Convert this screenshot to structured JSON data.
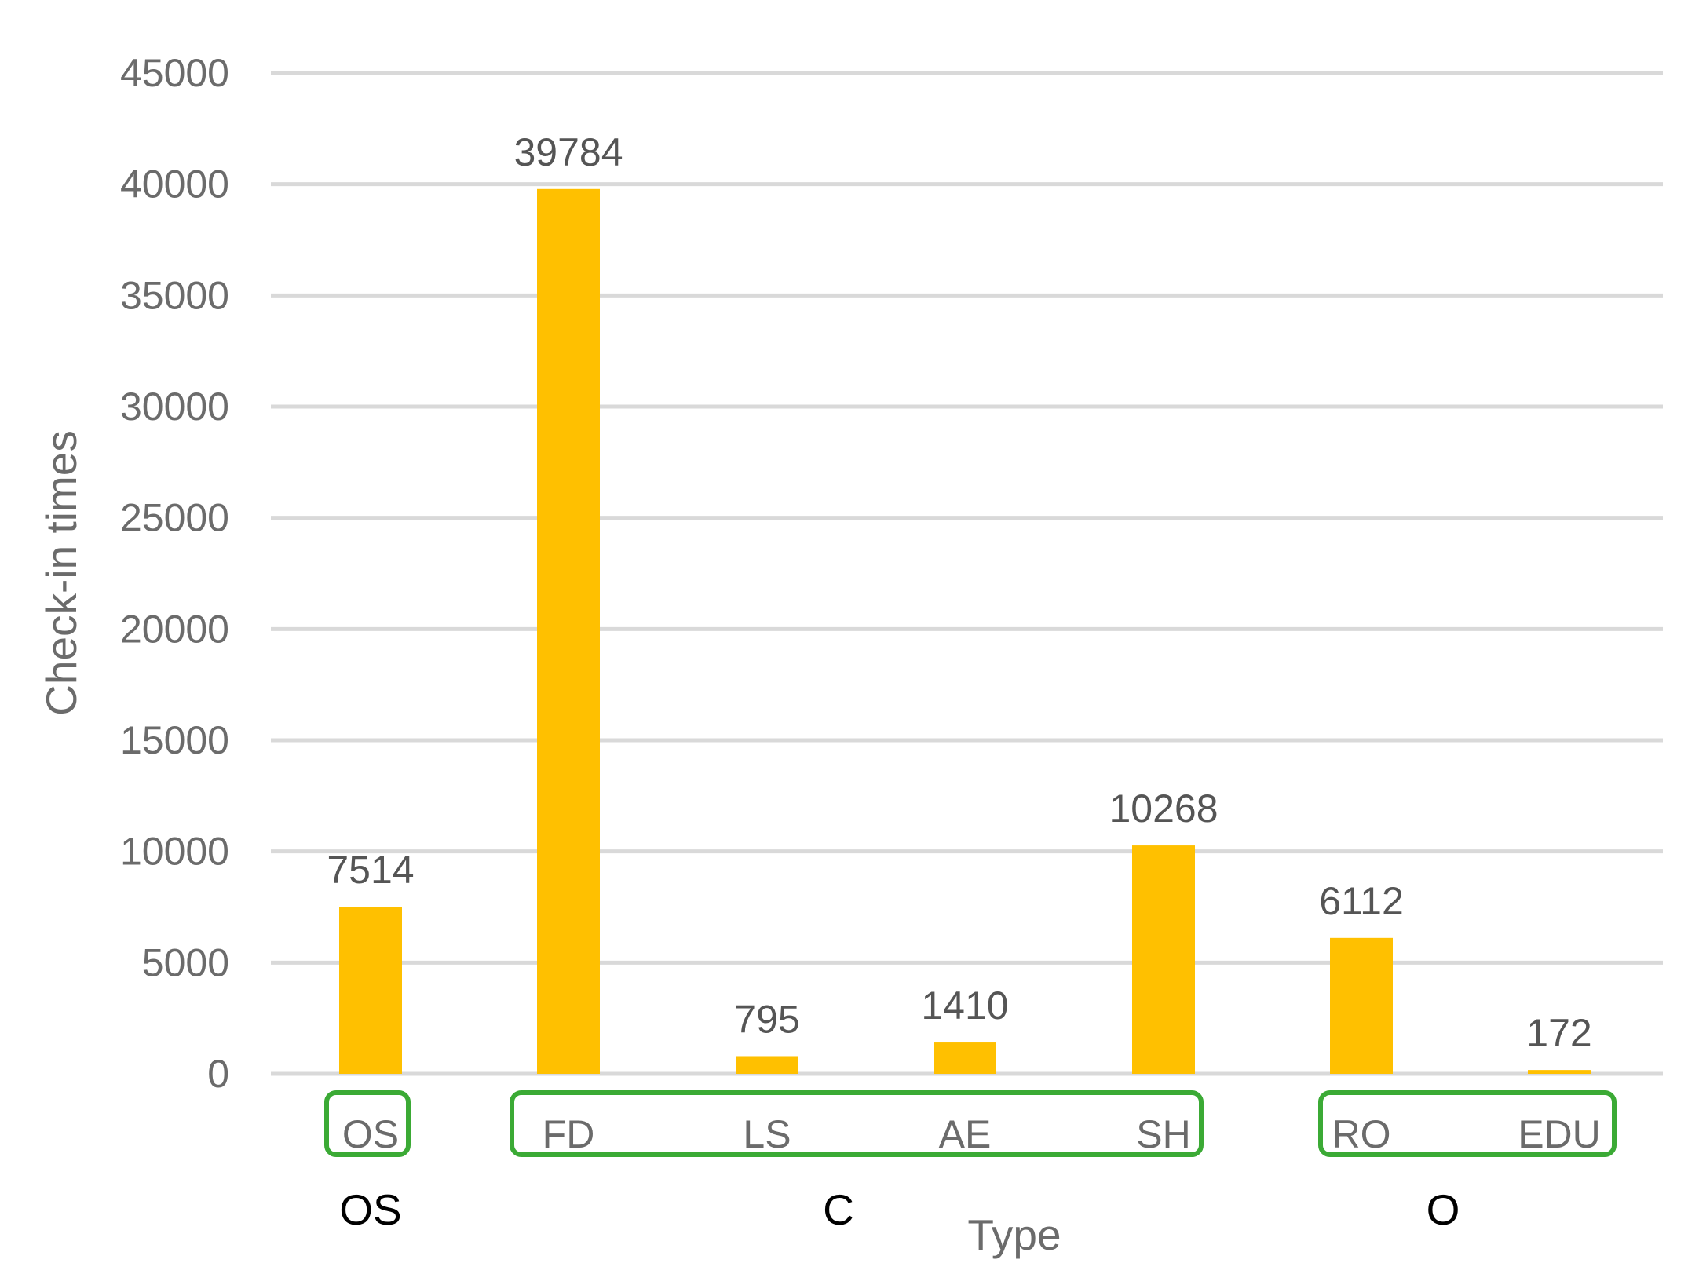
{
  "chart_data": {
    "type": "bar",
    "categories": [
      "OS",
      "FD",
      "LS",
      "AE",
      "SH",
      "RO",
      "EDU"
    ],
    "values": [
      7514,
      39784,
      795,
      1410,
      10268,
      6112,
      172
    ],
    "data_labels": [
      "7514",
      "39784",
      "795",
      "1410",
      "10268",
      "6112",
      "172"
    ],
    "ylim": [
      0,
      45000
    ],
    "yticks": [
      0,
      5000,
      10000,
      15000,
      20000,
      25000,
      30000,
      35000,
      40000,
      45000
    ],
    "ytick_labels": [
      "0",
      "5000",
      "10000",
      "15000",
      "20000",
      "25000",
      "30000",
      "35000",
      "40000",
      "45000"
    ],
    "xlabel": "Type",
    "ylabel": "Check-in times",
    "grid": true,
    "legend": "none",
    "groups": [
      {
        "label": "OS",
        "members": [
          "OS"
        ]
      },
      {
        "label": "C",
        "members": [
          "FD",
          "LS",
          "AE",
          "SH"
        ]
      },
      {
        "label": "O",
        "members": [
          "RO",
          "EDU"
        ]
      }
    ],
    "colors": {
      "bar": "#FFC000",
      "group_box": "#3BAA35",
      "grid": "#d9d9d9",
      "tick_text": "#6b6b6b",
      "data_label_text": "#555555",
      "group_text": "#000000"
    }
  }
}
